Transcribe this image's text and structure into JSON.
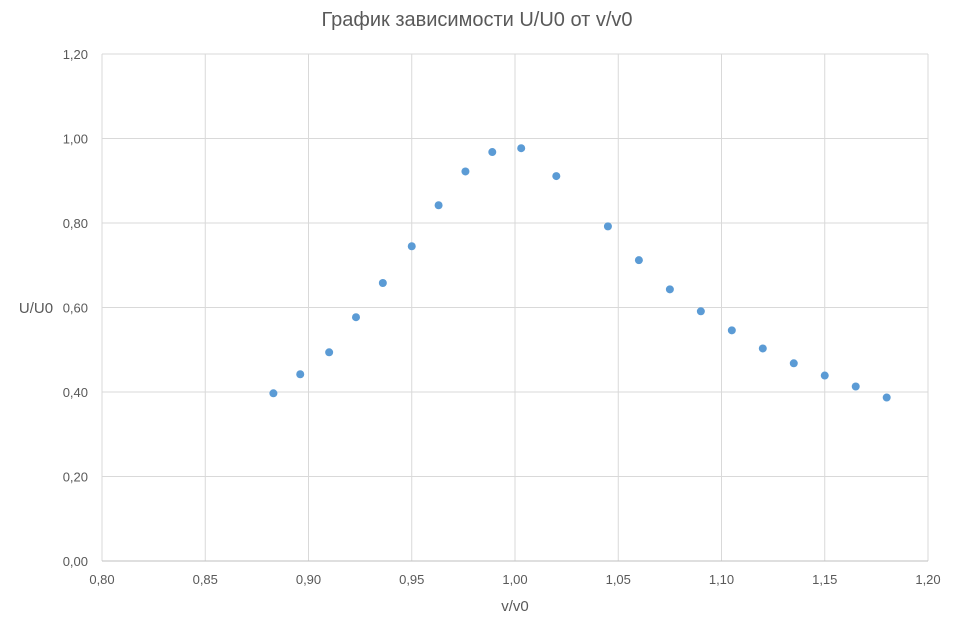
{
  "chart_data": {
    "type": "scatter",
    "title": "График зависимости U/U0 от v/v0",
    "xlabel": "v/v0",
    "ylabel": "U/U0",
    "xlim": [
      0.8,
      1.2
    ],
    "ylim": [
      0.0,
      1.2
    ],
    "x_ticks": [
      "0,80",
      "0,85",
      "0,90",
      "0,95",
      "1,00",
      "1,05",
      "1,10",
      "1,15",
      "1,20"
    ],
    "y_ticks": [
      "0,00",
      "0,20",
      "0,40",
      "0,60",
      "0,80",
      "1,00",
      "1,20"
    ],
    "grid": true,
    "marker_color": "#5b9bd5",
    "points": [
      {
        "x": 0.883,
        "y": 0.397
      },
      {
        "x": 0.896,
        "y": 0.442
      },
      {
        "x": 0.91,
        "y": 0.494
      },
      {
        "x": 0.923,
        "y": 0.577
      },
      {
        "x": 0.936,
        "y": 0.658
      },
      {
        "x": 0.95,
        "y": 0.745
      },
      {
        "x": 0.963,
        "y": 0.842
      },
      {
        "x": 0.976,
        "y": 0.922
      },
      {
        "x": 0.989,
        "y": 0.968
      },
      {
        "x": 1.003,
        "y": 0.977
      },
      {
        "x": 1.02,
        "y": 0.911
      },
      {
        "x": 1.045,
        "y": 0.792
      },
      {
        "x": 1.06,
        "y": 0.712
      },
      {
        "x": 1.075,
        "y": 0.643
      },
      {
        "x": 1.09,
        "y": 0.591
      },
      {
        "x": 1.105,
        "y": 0.546
      },
      {
        "x": 1.12,
        "y": 0.503
      },
      {
        "x": 1.135,
        "y": 0.468
      },
      {
        "x": 1.15,
        "y": 0.439
      },
      {
        "x": 1.165,
        "y": 0.413
      },
      {
        "x": 1.18,
        "y": 0.387
      }
    ]
  }
}
